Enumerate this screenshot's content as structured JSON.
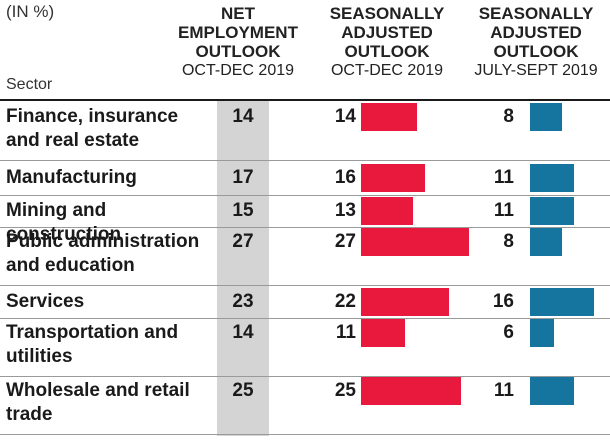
{
  "chart_data": {
    "type": "table",
    "unit_label": "(IN %)",
    "row_header": "Sector",
    "columns": [
      {
        "title_lines": [
          "NET",
          "EMPLOYMENT",
          "OUTLOOK"
        ],
        "period": "OCT-DEC 2019"
      },
      {
        "title_lines": [
          "SEASONALLY",
          "ADJUSTED",
          "OUTLOOK"
        ],
        "period": "OCT-DEC 2019",
        "bar_color": "#e8193d"
      },
      {
        "title_lines": [
          "SEASONALLY",
          "ADJUSTED",
          "OUTLOOK"
        ],
        "period": "JULY-SEPT 2019",
        "bar_color": "#16759f"
      }
    ],
    "rows": [
      {
        "sector": "Finance, insurance and real estate",
        "lines": [
          "Finance, insurance",
          "and real estate"
        ],
        "values": [
          14,
          14,
          8
        ]
      },
      {
        "sector": "Manufacturing",
        "lines": [
          "Manufacturing"
        ],
        "values": [
          17,
          16,
          11
        ]
      },
      {
        "sector": "Mining and construction",
        "lines": [
          "Mining and construction"
        ],
        "values": [
          15,
          13,
          11
        ]
      },
      {
        "sector": "Public administration and education",
        "lines": [
          "Public administration",
          "and education"
        ],
        "values": [
          27,
          27,
          8
        ]
      },
      {
        "sector": "Services",
        "lines": [
          "Services"
        ],
        "values": [
          23,
          22,
          16
        ]
      },
      {
        "sector": "Transportation and utilities",
        "lines": [
          "Transportation and",
          "utilities"
        ],
        "values": [
          14,
          11,
          6
        ]
      },
      {
        "sector": "Wholesale and retail trade",
        "lines": [
          "Wholesale and retail",
          "trade"
        ],
        "values": [
          25,
          25,
          11
        ]
      }
    ],
    "bar_max": 27,
    "colors": {
      "shade": "#d4d4d4",
      "red": "#e8193d",
      "blue": "#16759f"
    }
  }
}
